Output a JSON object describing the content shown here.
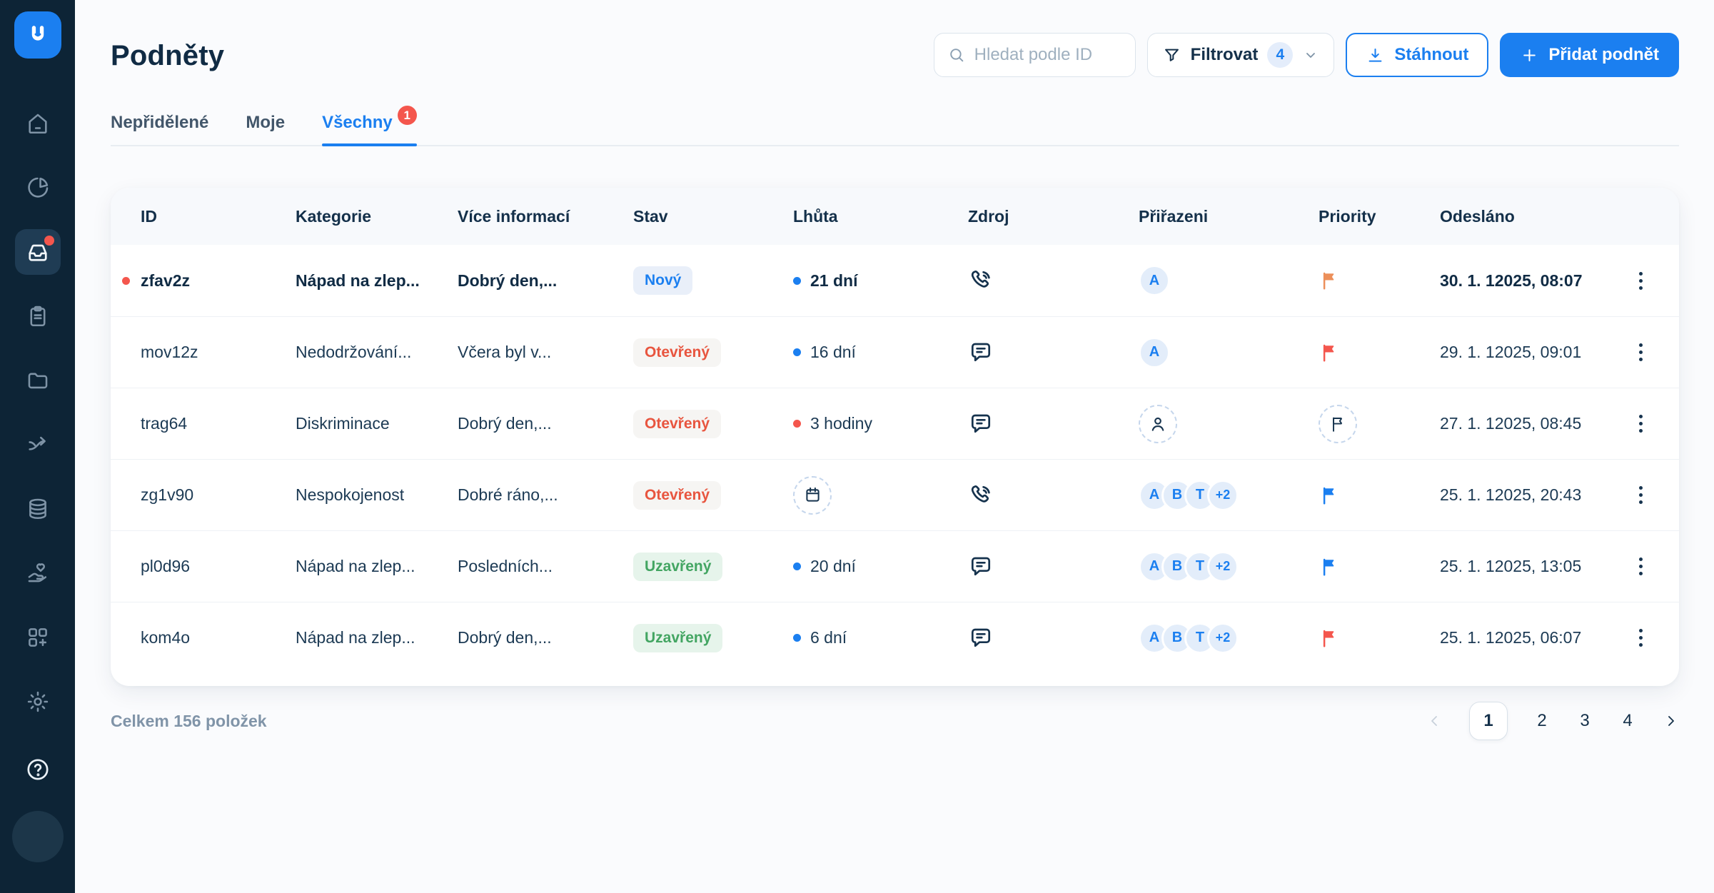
{
  "colors": {
    "accent": "#1B7FF0",
    "sidebar_bg": "#0D2436",
    "danger": "#F4564D",
    "flag_orange": "#EC8F5A",
    "status_new_text": "#1B7FF0",
    "status_open_text": "#E8553F",
    "status_closed_text": "#43A562"
  },
  "sidebar": {
    "logo_icon": "u-logo",
    "items": [
      {
        "icon": "home",
        "active": false,
        "notification_dot": false
      },
      {
        "icon": "pie-chart",
        "active": false,
        "notification_dot": false
      },
      {
        "icon": "inbox",
        "active": true,
        "notification_dot": true
      },
      {
        "icon": "clipboard",
        "active": false,
        "notification_dot": false
      },
      {
        "icon": "folder",
        "active": false,
        "notification_dot": false
      },
      {
        "icon": "arrow-forward",
        "active": false,
        "notification_dot": false
      },
      {
        "icon": "database",
        "active": false,
        "notification_dot": false
      },
      {
        "icon": "hand-heart",
        "active": false,
        "notification_dot": false
      },
      {
        "icon": "apps-add",
        "active": false,
        "notification_dot": false
      },
      {
        "icon": "settings",
        "active": false,
        "notification_dot": false
      }
    ],
    "help_icon": "help-circle",
    "avatar": "user-avatar"
  },
  "header": {
    "title": "Podněty",
    "search": {
      "placeholder": "Hledat podle ID",
      "icon": "search"
    },
    "filter": {
      "label": "Filtrovat",
      "count": "4",
      "icon": "funnel",
      "chevron_icon": "chevron-down"
    },
    "download_label": "Stáhnout",
    "add_label": "Přidat podnět"
  },
  "tabs": [
    {
      "label": "Nepřidělené",
      "active": false,
      "badge": null
    },
    {
      "label": "Moje",
      "active": false,
      "badge": null
    },
    {
      "label": "Všechny",
      "active": true,
      "badge": "1"
    }
  ],
  "table": {
    "columns": [
      "ID",
      "Kategorie",
      "Více informací",
      "Stav",
      "Lhůta",
      "Zdroj",
      "Přiřazeni",
      "Priority",
      "Odesláno"
    ],
    "rows": [
      {
        "id": "zfav2z",
        "unread": true,
        "category": "Nápad na zlep...",
        "info": "Dobrý den,...",
        "status": "Nový",
        "status_type": "new",
        "deadline": {
          "text": "21 dní",
          "dot": "blue"
        },
        "source_icon": "phone-call",
        "assignees": [
          "A"
        ],
        "priority": "flag-orange",
        "sent": "30. 1. 12025, 08:07"
      },
      {
        "id": "mov12z",
        "unread": false,
        "category": "Nedodržování...",
        "info": "Včera byl v...",
        "status": "Otevřený",
        "status_type": "open",
        "deadline": {
          "text": "16 dní",
          "dot": "blue"
        },
        "source_icon": "chat-bubble",
        "assignees": [
          "A"
        ],
        "priority": "flag-red",
        "sent": "29. 1. 12025, 09:01"
      },
      {
        "id": "trag64",
        "unread": false,
        "category": "Diskriminace",
        "info": "Dobrý den,...",
        "status": "Otevřený",
        "status_type": "open",
        "deadline": {
          "text": "3 hodiny",
          "dot": "red"
        },
        "source_icon": "chat-bubble",
        "assignees": [],
        "priority": "flag-dashed",
        "sent": "27. 1. 12025, 08:45"
      },
      {
        "id": "zg1v90",
        "unread": false,
        "category": "Nespokojenost",
        "info": "Dobré ráno,...",
        "status": "Otevřený",
        "status_type": "open",
        "deadline": {
          "icon": "calendar"
        },
        "source_icon": "phone-call",
        "assignees": [
          "A",
          "B",
          "T",
          "+2"
        ],
        "priority": "flag-blue",
        "sent": "25. 1. 12025, 20:43"
      },
      {
        "id": "pl0d96",
        "unread": false,
        "category": "Nápad na zlep...",
        "info": "Posledních...",
        "status": "Uzavřený",
        "status_type": "closed",
        "deadline": {
          "text": "20 dní",
          "dot": "blue"
        },
        "source_icon": "chat-bubble",
        "assignees": [
          "A",
          "B",
          "T",
          "+2"
        ],
        "priority": "flag-blue",
        "sent": "25. 1. 12025, 13:05"
      },
      {
        "id": "kom4o",
        "unread": false,
        "category": "Nápad na zlep...",
        "info": "Dobrý den,...",
        "status": "Uzavřený",
        "status_type": "closed",
        "deadline": {
          "text": "6 dní",
          "dot": "blue"
        },
        "source_icon": "chat-bubble",
        "assignees": [
          "A",
          "B",
          "T",
          "+2"
        ],
        "priority": "flag-red",
        "sent": "25. 1. 12025, 06:07"
      }
    ]
  },
  "footer": {
    "total": "Celkem 156 položek",
    "pages": [
      "1",
      "2",
      "3",
      "4"
    ],
    "active_page": "1",
    "prev_icon": "chevron-left",
    "next_icon": "chevron-right"
  }
}
